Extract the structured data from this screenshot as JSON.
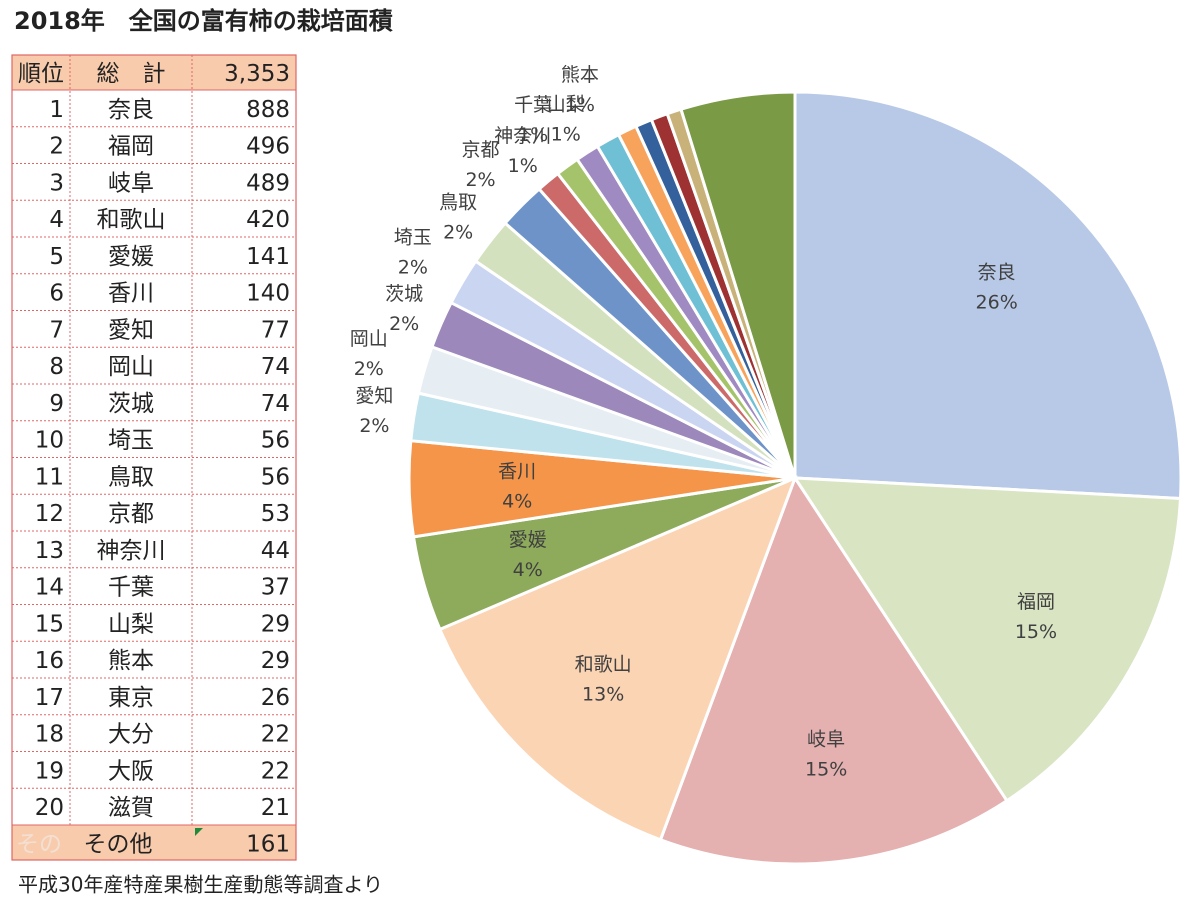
{
  "title": "2018年　全国の富有柿の栽培面積",
  "source": "平成30年産特産果樹生産動態等調査より",
  "table": {
    "header": [
      "順位",
      "総　計",
      "3,353"
    ],
    "rows": [
      [
        1,
        "奈良",
        888
      ],
      [
        2,
        "福岡",
        496
      ],
      [
        3,
        "岐阜",
        489
      ],
      [
        4,
        "和歌山",
        420
      ],
      [
        5,
        "愛媛",
        141
      ],
      [
        6,
        "香川",
        140
      ],
      [
        7,
        "愛知",
        77
      ],
      [
        8,
        "岡山",
        74
      ],
      [
        9,
        "茨城",
        74
      ],
      [
        10,
        "埼玉",
        56
      ],
      [
        11,
        "鳥取",
        56
      ],
      [
        12,
        "京都",
        53
      ],
      [
        13,
        "神奈川",
        44
      ],
      [
        14,
        "千葉",
        37
      ],
      [
        15,
        "山梨",
        29
      ],
      [
        16,
        "熊本",
        29
      ],
      [
        17,
        "東京",
        26
      ],
      [
        18,
        "大分",
        22
      ],
      [
        19,
        "大阪",
        22
      ],
      [
        20,
        "滋賀",
        21
      ]
    ],
    "footer": {
      "ghost": "その",
      "label": "その他",
      "total": 161
    }
  },
  "chart_data": {
    "type": "pie",
    "categories": [
      "奈良",
      "福岡",
      "岐阜",
      "和歌山",
      "愛媛",
      "香川",
      "愛知",
      "岡山",
      "茨城",
      "埼玉",
      "鳥取",
      "京都",
      "神奈川",
      "千葉",
      "山梨",
      "熊本",
      null,
      null,
      null,
      null,
      null
    ],
    "values": [
      26,
      15,
      15,
      13,
      4,
      4,
      2,
      2,
      2,
      2,
      2,
      2,
      1,
      1,
      1,
      1,
      0.8,
      0.7,
      0.7,
      0.6,
      4.8
    ],
    "value_labels": [
      "26%",
      "15%",
      "15%",
      "13%",
      "4%",
      "4%",
      "2%",
      "2%",
      "2%",
      "2%",
      "2%",
      "2%",
      "1%",
      "1%",
      "1%",
      "1%",
      null,
      null,
      null,
      null,
      null
    ],
    "colors": [
      "#b7c9e6",
      "#d8e4c2",
      "#e4b0b0",
      "#fbd4b4",
      "#8eab5c",
      "#f4954a",
      "#bfe2ec",
      "#e6edf3",
      "#9c88ba",
      "#cad5f1",
      "#d4e1be",
      "#6e93c8",
      "#cc6a6a",
      "#a4c36b",
      "#a08ac2",
      "#6fc0d4",
      "#f7a35c",
      "#34619c",
      "#9e3232",
      "#c9b27a",
      "#7a9a45"
    ]
  }
}
